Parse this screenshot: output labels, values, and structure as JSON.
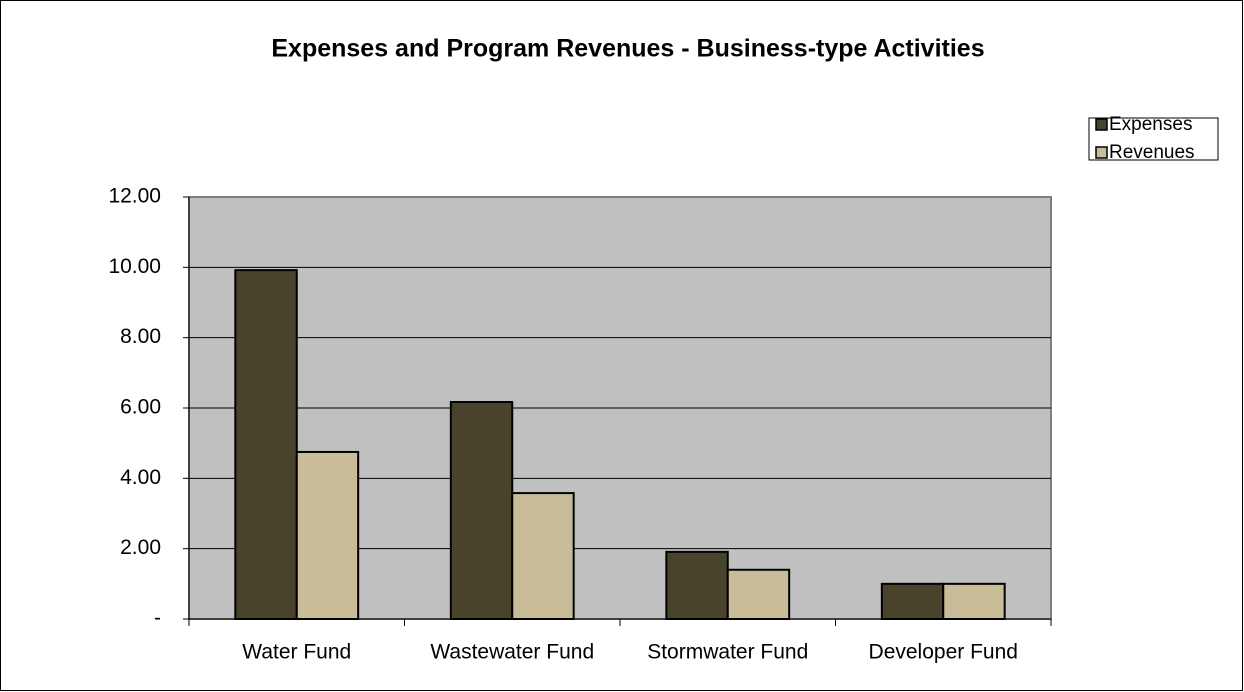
{
  "chart_data": {
    "type": "bar",
    "title": "Expenses and Program Revenues - Business-type Activities",
    "categories": [
      "Water Fund",
      "Wastewater Fund",
      "Stormwater Fund",
      "Developer Fund"
    ],
    "series": [
      {
        "name": "Expenses",
        "color": "#4a432c",
        "values": [
          9.92,
          6.17,
          1.91,
          1.0
        ]
      },
      {
        "name": "Revenues",
        "color": "#c8bd98",
        "values": [
          4.75,
          3.58,
          1.4,
          1.0
        ]
      }
    ],
    "ylim": [
      0,
      12
    ],
    "yticks": [
      {
        "value": 0,
        "label": "-"
      },
      {
        "value": 2,
        "label": "2.00"
      },
      {
        "value": 4,
        "label": "4.00"
      },
      {
        "value": 6,
        "label": "6.00"
      },
      {
        "value": 8,
        "label": "8.00"
      },
      {
        "value": 10,
        "label": "10.00"
      },
      {
        "value": 12,
        "label": "12.00"
      }
    ],
    "grid": true,
    "legend": "top-right"
  }
}
